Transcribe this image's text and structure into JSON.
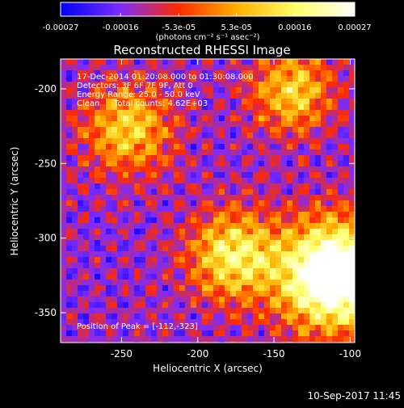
{
  "chart_data": {
    "type": "heatmap",
    "title": "Reconstructed RHESSI Image",
    "colorbar": {
      "ticks": [
        "-0.00027",
        "-0.00016",
        "-5.3e-05",
        "5.3e-05",
        "0.00016",
        "0.00027"
      ],
      "tick_values": [
        -0.00027,
        -0.00016,
        -5.3e-05,
        5.3e-05,
        0.00016,
        0.00027
      ],
      "range": [
        -0.00027,
        0.00027
      ],
      "units": "(photons cm⁻² s⁻¹ asec⁻²)",
      "colors": [
        "#0000ff",
        "#7b2cff",
        "#ff2a00",
        "#ffb000",
        "#ffff66",
        "#ffffff"
      ]
    },
    "xlabel": "Heliocentric X (arcsec)",
    "ylabel": "Heliocentric Y (arcsec)",
    "xlim": [
      -290,
      -97
    ],
    "ylim": [
      -370,
      -180
    ],
    "x_ticks": [
      "-250",
      "-200",
      "-150",
      "-100"
    ],
    "x_tick_values": [
      -250,
      -200,
      -150,
      -100
    ],
    "y_ticks": [
      "-200",
      "-250",
      "-300",
      "-350"
    ],
    "y_tick_values": [
      -200,
      -250,
      -300,
      -350
    ],
    "grid": false,
    "annotations": {
      "time_range": "17-Dec-2014 01:20:08.000 to 01:30:08.000",
      "detectors": "Detectors: 3F 6F 7F 9F, Att 0",
      "energy": "Energy Range: 25.0 - 50.0 keV",
      "algorithm": "Clean",
      "total_counts": "Total counts: 4.62E+03",
      "peak": "Position of Peak = [-112,-323]"
    },
    "peak_position": [
      -112,
      -323
    ]
  },
  "footer_timestamp": "10-Sep-2017 11:45",
  "colors": {
    "background": "#000000",
    "text": "#ffffff"
  }
}
